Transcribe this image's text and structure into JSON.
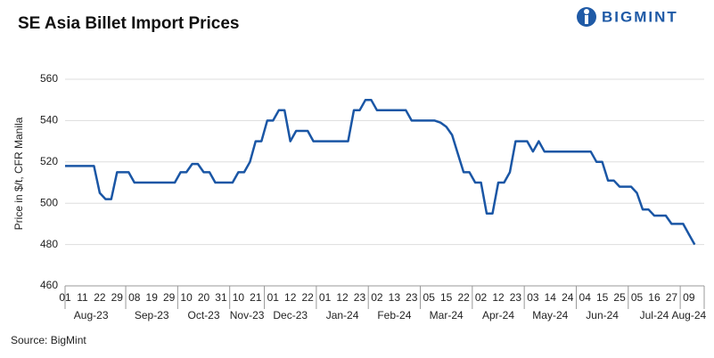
{
  "chart_data": {
    "type": "line",
    "title": "SE Asia Billet Import Prices",
    "brand": "BIGMINT",
    "source": "Source: BigMint",
    "y_label": "Price in $/t, CFR Manila",
    "categories": [
      "01",
      null,
      null,
      "11",
      null,
      null,
      "22",
      null,
      null,
      "29",
      null,
      null,
      "08",
      null,
      null,
      "19",
      null,
      null,
      "29",
      null,
      null,
      "10",
      null,
      null,
      "20",
      null,
      null,
      "31",
      null,
      null,
      "10",
      null,
      null,
      "21",
      null,
      null,
      "01",
      null,
      null,
      "12",
      null,
      null,
      "22",
      null,
      null,
      "01",
      null,
      null,
      "12",
      null,
      null,
      "23",
      null,
      null,
      "02",
      null,
      null,
      "13",
      null,
      null,
      "23",
      null,
      null,
      "05",
      null,
      null,
      "15",
      null,
      null,
      "22",
      null,
      null,
      "02",
      null,
      null,
      "12",
      null,
      null,
      "23",
      null,
      null,
      "03",
      null,
      null,
      "14",
      null,
      null,
      "24",
      null,
      null,
      "04",
      null,
      null,
      "15",
      null,
      null,
      "25",
      null,
      null,
      "05",
      null,
      null,
      "16",
      null,
      null,
      "27",
      null,
      null,
      "09",
      null
    ],
    "months": [
      "Aug-23",
      "Sep-23",
      "Oct-23",
      "Nov-23",
      "Dec-23",
      "Jan-24",
      "Feb-24",
      "Mar-24",
      "Apr-24",
      "May-24",
      "Jun-24",
      "Jul-24",
      "Aug-24"
    ],
    "series": [
      {
        "name": "SE Asia Billet Import Prices",
        "color": "#1a56a5",
        "values": [
          518,
          518,
          518,
          518,
          518,
          518,
          505,
          502,
          502,
          515,
          515,
          515,
          510,
          510,
          510,
          510,
          510,
          510,
          510,
          510,
          515,
          515,
          519,
          519,
          515,
          515,
          510,
          510,
          510,
          510,
          515,
          515,
          520,
          530,
          530,
          540,
          540,
          545,
          545,
          530,
          535,
          535,
          535,
          530,
          530,
          530,
          530,
          530,
          530,
          530,
          545,
          545,
          550,
          550,
          545,
          545,
          545,
          545,
          545,
          545,
          540,
          540,
          540,
          540,
          540,
          539,
          537,
          533,
          524,
          515,
          515,
          510,
          510,
          495,
          495,
          510,
          510,
          515,
          530,
          530,
          530,
          525,
          530,
          525,
          525,
          525,
          525,
          525,
          525,
          525,
          525,
          525,
          520,
          520,
          511,
          511,
          508,
          508,
          508,
          505,
          497,
          497,
          494,
          494,
          494,
          490,
          490,
          490,
          485,
          480
        ]
      }
    ],
    "ylim": [
      460,
      560
    ],
    "yticks": [
      460,
      480,
      500,
      520,
      540,
      560
    ],
    "grid": true
  }
}
